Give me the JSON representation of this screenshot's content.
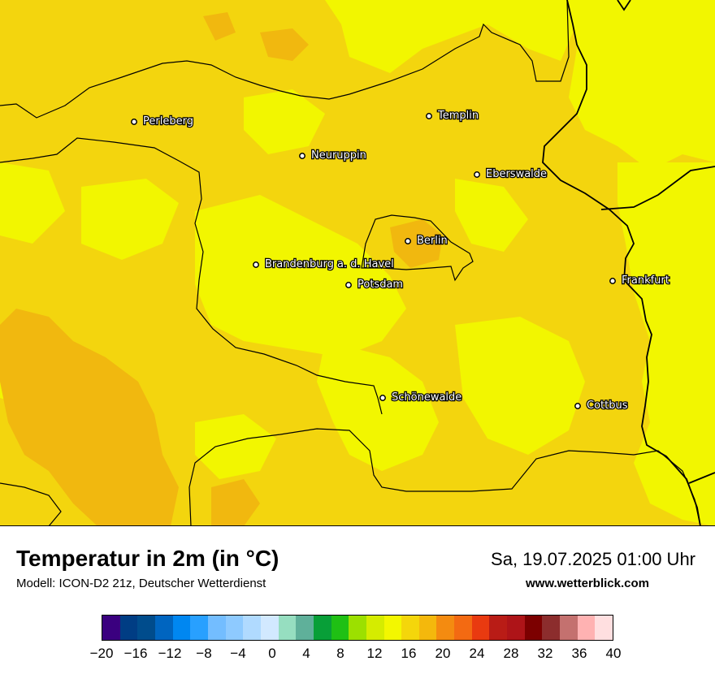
{
  "map": {
    "region": "Brandenburg",
    "background_colors": {
      "warm": "#f3d50e",
      "cool": "#f2f600",
      "warmer": "#f1b80f"
    },
    "cities": [
      {
        "name": "Perleberg"
      },
      {
        "name": "Templin"
      },
      {
        "name": "Neuruppin"
      },
      {
        "name": "Eberswalde"
      },
      {
        "name": "Berlin"
      },
      {
        "name": "Brandenburg a. d. Havel"
      },
      {
        "name": "Potsdam"
      },
      {
        "name": "Frankfurt"
      },
      {
        "name": "Schönewalde"
      },
      {
        "name": "Cottbus"
      }
    ]
  },
  "header": {
    "title": "Temperatur in 2m (in °C)",
    "model": "Modell: ICON-D2 21z, Deutscher Wetterdienst",
    "datetime": "Sa, 19.07.2025 01:00 Uhr",
    "website": "www.wetterblick.com"
  },
  "legend": {
    "min": -20,
    "max": 40,
    "colors": [
      "#3a007f",
      "#003d84",
      "#004c8c",
      "#0065c0",
      "#0087f1",
      "#28a0ff",
      "#73bdff",
      "#8ecaff",
      "#b0daff",
      "#d2e9ff",
      "#96dec0",
      "#5fb09a",
      "#089f38",
      "#1fc014",
      "#9ce000",
      "#d5ec00",
      "#f3f700",
      "#f4d60b",
      "#f4b80c",
      "#f48b10",
      "#f36a12",
      "#e93a10",
      "#b91c16",
      "#ae1418",
      "#7c0000",
      "#8c2d2d",
      "#c4716f",
      "#ffb2b2",
      "#ffdfe0"
    ],
    "ticks": [
      "−20",
      "−16",
      "−12",
      "−8",
      "−4",
      "0",
      "4",
      "8",
      "12",
      "16",
      "20",
      "24",
      "28",
      "32",
      "36",
      "40"
    ]
  }
}
